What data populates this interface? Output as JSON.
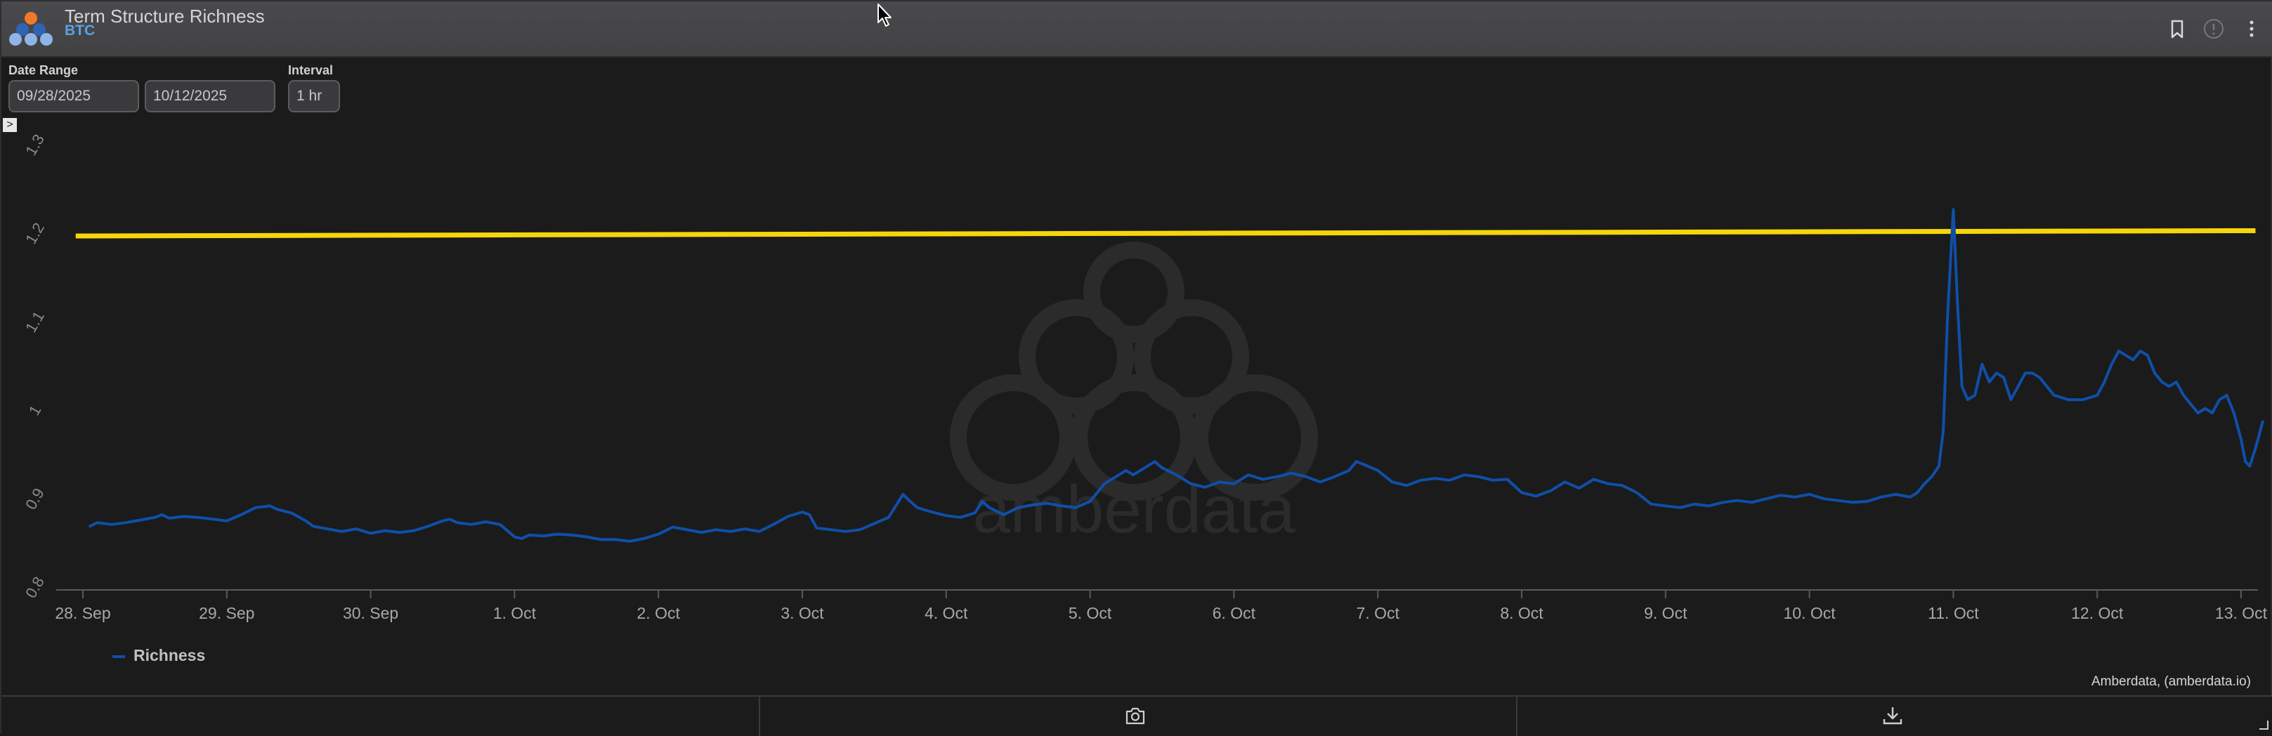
{
  "window": {
    "title": "Term Structure Richness",
    "subtitle": "BTC"
  },
  "controls": {
    "date_range_label": "Date Range",
    "start_date": "09/28/2025",
    "end_date": "10/12/2025",
    "interval_label": "Interval",
    "interval_value": "1 hr"
  },
  "expander_glyph": ">",
  "watermark_text": "amberdata",
  "credit": "Amberdata, (amberdata.io)",
  "icons": [
    "bookmark-icon",
    "info-icon",
    "more-vert-icon",
    "camera-icon",
    "download-icon",
    "resize-grip-icon"
  ],
  "colors": {
    "series": "#0f4fa8",
    "reference_line": "#f5d60a",
    "background": "#1b1b1c"
  },
  "chart_data": {
    "type": "line",
    "title": "",
    "xlabel": "",
    "ylabel": "",
    "ylim": [
      0.8,
      1.3
    ],
    "yticks": [
      "0.8",
      "0.9",
      "1",
      "1.1",
      "1.2",
      "1.3"
    ],
    "xlim": [
      0,
      15.1
    ],
    "xticks": [
      "28. Sep",
      "29. Sep",
      "30. Sep",
      "1. Oct",
      "2. Oct",
      "3. Oct",
      "4. Oct",
      "5. Oct",
      "6. Oct",
      "7. Oct",
      "8. Oct",
      "9. Oct",
      "10. Oct",
      "11. Oct",
      "12. Oct",
      "13. Oct"
    ],
    "legend": {
      "placement": "bottom-left"
    },
    "grid": false,
    "reference_line": {
      "from": [
        -0.05,
        1.2
      ],
      "to": [
        15.1,
        1.206
      ]
    },
    "series": [
      {
        "name": "Richness",
        "points": [
          [
            0.05,
            0.872
          ],
          [
            0.1,
            0.876
          ],
          [
            0.2,
            0.874
          ],
          [
            0.3,
            0.876
          ],
          [
            0.4,
            0.879
          ],
          [
            0.5,
            0.882
          ],
          [
            0.55,
            0.885
          ],
          [
            0.6,
            0.881
          ],
          [
            0.7,
            0.883
          ],
          [
            0.8,
            0.882
          ],
          [
            0.9,
            0.88
          ],
          [
            1.0,
            0.878
          ],
          [
            1.1,
            0.885
          ],
          [
            1.2,
            0.893
          ],
          [
            1.3,
            0.895
          ],
          [
            1.35,
            0.891
          ],
          [
            1.45,
            0.887
          ],
          [
            1.55,
            0.878
          ],
          [
            1.6,
            0.872
          ],
          [
            1.7,
            0.869
          ],
          [
            1.8,
            0.866
          ],
          [
            1.9,
            0.869
          ],
          [
            2.0,
            0.864
          ],
          [
            2.1,
            0.867
          ],
          [
            2.2,
            0.865
          ],
          [
            2.3,
            0.867
          ],
          [
            2.4,
            0.872
          ],
          [
            2.5,
            0.878
          ],
          [
            2.55,
            0.88
          ],
          [
            2.6,
            0.876
          ],
          [
            2.7,
            0.874
          ],
          [
            2.8,
            0.877
          ],
          [
            2.9,
            0.874
          ],
          [
            3.0,
            0.86
          ],
          [
            3.05,
            0.858
          ],
          [
            3.1,
            0.862
          ],
          [
            3.2,
            0.861
          ],
          [
            3.3,
            0.863
          ],
          [
            3.4,
            0.862
          ],
          [
            3.5,
            0.86
          ],
          [
            3.6,
            0.857
          ],
          [
            3.7,
            0.857
          ],
          [
            3.8,
            0.855
          ],
          [
            3.9,
            0.858
          ],
          [
            4.0,
            0.863
          ],
          [
            4.1,
            0.871
          ],
          [
            4.2,
            0.868
          ],
          [
            4.3,
            0.865
          ],
          [
            4.4,
            0.868
          ],
          [
            4.5,
            0.866
          ],
          [
            4.6,
            0.869
          ],
          [
            4.7,
            0.866
          ],
          [
            4.8,
            0.874
          ],
          [
            4.9,
            0.883
          ],
          [
            5.0,
            0.888
          ],
          [
            5.05,
            0.885
          ],
          [
            5.1,
            0.87
          ],
          [
            5.2,
            0.868
          ],
          [
            5.3,
            0.866
          ],
          [
            5.4,
            0.868
          ],
          [
            5.5,
            0.875
          ],
          [
            5.6,
            0.882
          ],
          [
            5.65,
            0.895
          ],
          [
            5.7,
            0.908
          ],
          [
            5.75,
            0.9
          ],
          [
            5.8,
            0.893
          ],
          [
            5.9,
            0.888
          ],
          [
            6.0,
            0.884
          ],
          [
            6.1,
            0.882
          ],
          [
            6.2,
            0.887
          ],
          [
            6.25,
            0.9
          ],
          [
            6.3,
            0.893
          ],
          [
            6.4,
            0.885
          ],
          [
            6.5,
            0.893
          ],
          [
            6.6,
            0.896
          ],
          [
            6.7,
            0.898
          ],
          [
            6.8,
            0.895
          ],
          [
            6.9,
            0.893
          ],
          [
            7.0,
            0.9
          ],
          [
            7.05,
            0.91
          ],
          [
            7.1,
            0.92
          ],
          [
            7.2,
            0.93
          ],
          [
            7.25,
            0.935
          ],
          [
            7.3,
            0.93
          ],
          [
            7.4,
            0.94
          ],
          [
            7.45,
            0.945
          ],
          [
            7.5,
            0.938
          ],
          [
            7.6,
            0.93
          ],
          [
            7.7,
            0.92
          ],
          [
            7.8,
            0.916
          ],
          [
            7.9,
            0.922
          ],
          [
            8.0,
            0.92
          ],
          [
            8.1,
            0.93
          ],
          [
            8.2,
            0.925
          ],
          [
            8.3,
            0.928
          ],
          [
            8.4,
            0.932
          ],
          [
            8.5,
            0.928
          ],
          [
            8.6,
            0.922
          ],
          [
            8.7,
            0.928
          ],
          [
            8.8,
            0.935
          ],
          [
            8.85,
            0.945
          ],
          [
            8.9,
            0.942
          ],
          [
            9.0,
            0.935
          ],
          [
            9.1,
            0.922
          ],
          [
            9.2,
            0.918
          ],
          [
            9.3,
            0.924
          ],
          [
            9.4,
            0.926
          ],
          [
            9.5,
            0.924
          ],
          [
            9.6,
            0.93
          ],
          [
            9.7,
            0.928
          ],
          [
            9.8,
            0.924
          ],
          [
            9.9,
            0.925
          ],
          [
            10.0,
            0.91
          ],
          [
            10.1,
            0.906
          ],
          [
            10.2,
            0.912
          ],
          [
            10.3,
            0.922
          ],
          [
            10.4,
            0.915
          ],
          [
            10.5,
            0.925
          ],
          [
            10.6,
            0.92
          ],
          [
            10.7,
            0.918
          ],
          [
            10.8,
            0.91
          ],
          [
            10.9,
            0.897
          ],
          [
            11.0,
            0.895
          ],
          [
            11.1,
            0.893
          ],
          [
            11.2,
            0.897
          ],
          [
            11.3,
            0.895
          ],
          [
            11.4,
            0.899
          ],
          [
            11.5,
            0.901
          ],
          [
            11.6,
            0.899
          ],
          [
            11.7,
            0.903
          ],
          [
            11.8,
            0.907
          ],
          [
            11.9,
            0.905
          ],
          [
            12.0,
            0.908
          ],
          [
            12.1,
            0.903
          ],
          [
            12.2,
            0.901
          ],
          [
            12.3,
            0.899
          ],
          [
            12.4,
            0.9
          ],
          [
            12.5,
            0.905
          ],
          [
            12.6,
            0.908
          ],
          [
            12.7,
            0.905
          ],
          [
            12.75,
            0.91
          ],
          [
            12.8,
            0.92
          ],
          [
            12.85,
            0.928
          ],
          [
            12.9,
            0.94
          ],
          [
            12.93,
            0.98
          ],
          [
            12.96,
            1.11
          ],
          [
            13.0,
            1.23
          ],
          [
            13.03,
            1.12
          ],
          [
            13.06,
            1.03
          ],
          [
            13.1,
            1.015
          ],
          [
            13.15,
            1.02
          ],
          [
            13.2,
            1.055
          ],
          [
            13.25,
            1.035
          ],
          [
            13.3,
            1.045
          ],
          [
            13.35,
            1.04
          ],
          [
            13.4,
            1.015
          ],
          [
            13.45,
            1.03
          ],
          [
            13.5,
            1.045
          ],
          [
            13.55,
            1.045
          ],
          [
            13.6,
            1.04
          ],
          [
            13.7,
            1.02
          ],
          [
            13.8,
            1.015
          ],
          [
            13.9,
            1.015
          ],
          [
            14.0,
            1.02
          ],
          [
            14.05,
            1.035
          ],
          [
            14.1,
            1.055
          ],
          [
            14.15,
            1.07
          ],
          [
            14.2,
            1.065
          ],
          [
            14.25,
            1.06
          ],
          [
            14.3,
            1.07
          ],
          [
            14.35,
            1.065
          ],
          [
            14.4,
            1.045
          ],
          [
            14.45,
            1.035
          ],
          [
            14.5,
            1.03
          ],
          [
            14.55,
            1.035
          ],
          [
            14.6,
            1.02
          ],
          [
            14.65,
            1.01
          ],
          [
            14.7,
            1.0
          ],
          [
            14.75,
            1.005
          ],
          [
            14.8,
            1.0
          ],
          [
            14.85,
            1.015
          ],
          [
            14.9,
            1.02
          ],
          [
            14.95,
            1.0
          ],
          [
            15.0,
            0.97
          ],
          [
            15.03,
            0.945
          ],
          [
            15.06,
            0.94
          ],
          [
            15.1,
            0.96
          ],
          [
            15.15,
            0.99
          ]
        ]
      }
    ]
  }
}
